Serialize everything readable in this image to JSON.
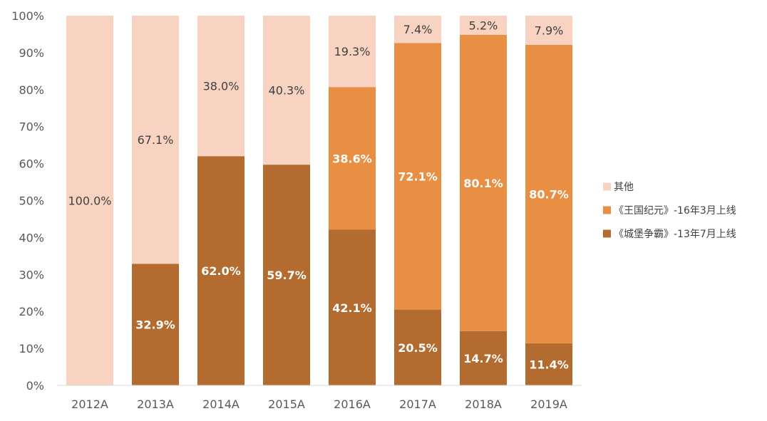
{
  "chart_data": {
    "type": "stacked-bar-100",
    "title": "",
    "xlabel": "",
    "ylabel": "",
    "ylim": [
      0,
      100
    ],
    "y_ticks": [
      "0%",
      "10%",
      "20%",
      "30%",
      "40%",
      "50%",
      "60%",
      "70%",
      "80%",
      "90%",
      "100%"
    ],
    "categories": [
      "2012A",
      "2013A",
      "2014A",
      "2015A",
      "2016A",
      "2017A",
      "2018A",
      "2019A"
    ],
    "series": [
      {
        "name": "《城堡争霸》-13年7月上线",
        "color": "#b46b2f",
        "label_color": "#ffffff",
        "label_bold": true,
        "values": [
          null,
          32.9,
          62.0,
          59.7,
          42.1,
          20.5,
          14.7,
          11.4
        ],
        "labels": [
          "",
          "32.9%",
          "62.0%",
          "59.7%",
          "42.1%",
          "20.5%",
          "14.7%",
          "11.4%"
        ]
      },
      {
        "name": "《王国纪元》-16年3月上线",
        "color": "#e98f43",
        "label_color": "#ffffff",
        "label_bold": true,
        "values": [
          null,
          null,
          null,
          null,
          38.6,
          72.1,
          80.1,
          80.7
        ],
        "labels": [
          "",
          "",
          "",
          "",
          "38.6%",
          "72.1%",
          "80.1%",
          "80.7%"
        ]
      },
      {
        "name": "其他",
        "color": "#f9d3c1",
        "label_color": "#404040",
        "label_bold": false,
        "values": [
          100.0,
          67.1,
          38.0,
          40.3,
          19.3,
          7.4,
          5.2,
          7.9
        ],
        "labels": [
          "100.0%",
          "67.1%",
          "38.0%",
          "40.3%",
          "19.3%",
          "7.4%",
          "5.2%",
          "7.9%"
        ]
      }
    ],
    "legend": {
      "position": "right",
      "order": [
        2,
        1,
        0
      ]
    }
  }
}
